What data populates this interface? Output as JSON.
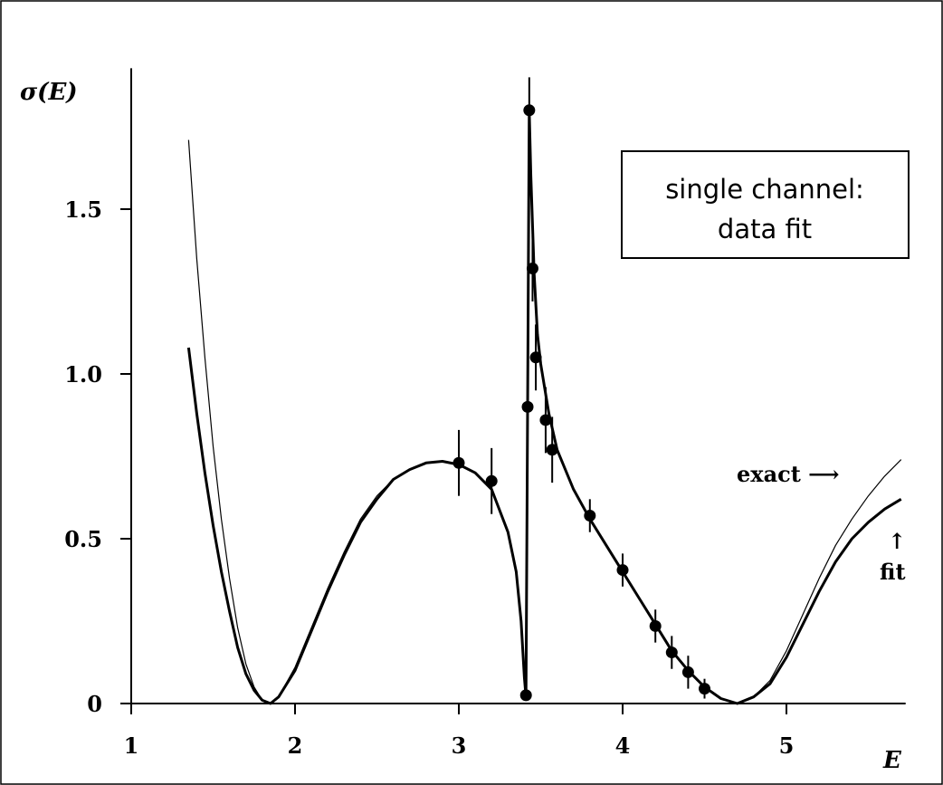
{
  "chart_data": {
    "type": "line",
    "title": "",
    "xlabel": "E",
    "ylabel": "σ(E)",
    "xlim": [
      1,
      5.7
    ],
    "ylim": [
      0,
      1.9
    ],
    "x_ticks": [
      1,
      2,
      3,
      4,
      5
    ],
    "x_tick_labels": [
      "1",
      "2",
      "3",
      "4",
      "5"
    ],
    "y_ticks": [
      0,
      0.5,
      1.0,
      1.5
    ],
    "y_tick_labels": [
      "0",
      "0.5",
      "1.0",
      "1.5"
    ],
    "grid": false,
    "legend_box": {
      "lines": [
        "single channel:",
        "data fit"
      ],
      "placement": "top-right"
    },
    "annotations": {
      "exact": "exact ⟶",
      "fit_arrow": "↑",
      "fit": "fit"
    },
    "series": [
      {
        "name": "exact",
        "style": "thin",
        "x": [
          1.35,
          1.4,
          1.45,
          1.5,
          1.55,
          1.6,
          1.65,
          1.7,
          1.75,
          1.8,
          1.85,
          1.9,
          2.0,
          2.1,
          2.2,
          2.3,
          2.4,
          2.5,
          2.6,
          2.7,
          2.8,
          2.9,
          3.0,
          3.1,
          3.2,
          3.3,
          3.35,
          3.38,
          3.4,
          3.41,
          3.42,
          3.43,
          3.44,
          3.46,
          3.48,
          3.5,
          3.55,
          3.6,
          3.7,
          3.8,
          3.9,
          4.0,
          4.1,
          4.2,
          4.3,
          4.4,
          4.5,
          4.6,
          4.7,
          4.8,
          4.9,
          5.0,
          5.1,
          5.2,
          5.3,
          5.4,
          5.5,
          5.6,
          5.7
        ],
        "y": [
          1.71,
          1.35,
          1.05,
          0.78,
          0.56,
          0.38,
          0.23,
          0.12,
          0.05,
          0.01,
          0.0,
          0.02,
          0.11,
          0.23,
          0.35,
          0.46,
          0.56,
          0.63,
          0.68,
          0.71,
          0.73,
          0.735,
          0.725,
          0.7,
          0.65,
          0.52,
          0.4,
          0.25,
          0.08,
          0.02,
          0.9,
          1.81,
          1.6,
          1.3,
          1.12,
          1.03,
          0.88,
          0.77,
          0.65,
          0.56,
          0.48,
          0.4,
          0.32,
          0.24,
          0.16,
          0.1,
          0.05,
          0.015,
          0.0,
          0.02,
          0.07,
          0.16,
          0.27,
          0.38,
          0.48,
          0.56,
          0.63,
          0.69,
          0.74
        ]
      },
      {
        "name": "fit",
        "style": "thick",
        "x": [
          1.35,
          1.4,
          1.45,
          1.5,
          1.55,
          1.6,
          1.65,
          1.7,
          1.75,
          1.8,
          1.85,
          1.9,
          2.0,
          2.1,
          2.2,
          2.3,
          2.4,
          2.5,
          2.6,
          2.7,
          2.8,
          2.9,
          3.0,
          3.1,
          3.2,
          3.3,
          3.35,
          3.38,
          3.4,
          3.41,
          3.42,
          3.43,
          3.44,
          3.46,
          3.48,
          3.5,
          3.55,
          3.6,
          3.7,
          3.8,
          3.9,
          4.0,
          4.1,
          4.2,
          4.3,
          4.4,
          4.5,
          4.6,
          4.7,
          4.8,
          4.9,
          5.0,
          5.1,
          5.2,
          5.3,
          5.4,
          5.5,
          5.6,
          5.7
        ],
        "y": [
          1.08,
          0.88,
          0.7,
          0.54,
          0.4,
          0.28,
          0.17,
          0.09,
          0.04,
          0.01,
          0.0,
          0.02,
          0.1,
          0.22,
          0.34,
          0.45,
          0.55,
          0.62,
          0.68,
          0.71,
          0.73,
          0.735,
          0.725,
          0.7,
          0.65,
          0.52,
          0.4,
          0.25,
          0.08,
          0.02,
          0.9,
          1.8,
          1.6,
          1.3,
          1.12,
          1.03,
          0.88,
          0.77,
          0.65,
          0.56,
          0.48,
          0.4,
          0.32,
          0.24,
          0.16,
          0.1,
          0.05,
          0.015,
          0.0,
          0.02,
          0.06,
          0.14,
          0.24,
          0.34,
          0.43,
          0.5,
          0.55,
          0.59,
          0.62
        ]
      }
    ],
    "data_points": {
      "x": [
        3.0,
        3.2,
        3.41,
        3.42,
        3.43,
        3.45,
        3.47,
        3.53,
        3.57,
        3.8,
        4.0,
        4.2,
        4.3,
        4.4,
        4.5
      ],
      "y": [
        0.73,
        0.675,
        0.025,
        0.9,
        1.8,
        1.32,
        1.05,
        0.86,
        0.77,
        0.57,
        0.405,
        0.235,
        0.155,
        0.095,
        0.045
      ],
      "err": [
        0.1,
        0.1,
        0.01,
        0.01,
        0.1,
        0.1,
        0.1,
        0.1,
        0.1,
        0.05,
        0.05,
        0.05,
        0.05,
        0.05,
        0.03
      ]
    }
  }
}
